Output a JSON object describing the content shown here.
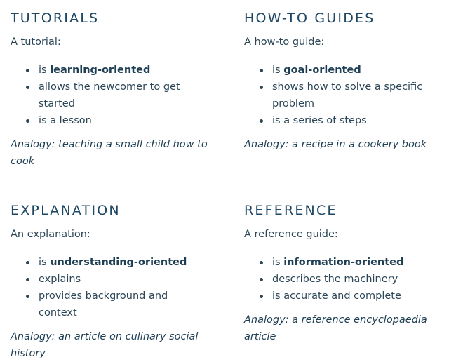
{
  "tutorials": {
    "heading": "TUTORIALS",
    "intro": "A tutorial:",
    "points": [
      {
        "prefix": "is ",
        "bold": "learning-oriented"
      },
      {
        "text": "allows the newcomer to get started"
      },
      {
        "text": "is a lesson"
      }
    ],
    "analogy": "Analogy: teaching a small child how to cook"
  },
  "howto": {
    "heading": "HOW-TO GUIDES",
    "intro": "A how-to guide:",
    "points": [
      {
        "prefix": "is ",
        "bold": "goal-oriented"
      },
      {
        "text": "shows how to solve a specific problem"
      },
      {
        "text": "is a series of steps"
      }
    ],
    "analogy": "Analogy: a recipe in a cookery book"
  },
  "explanation": {
    "heading": "EXPLANATION",
    "intro": "An explanation:",
    "points": [
      {
        "prefix": "is ",
        "bold": "understanding-oriented"
      },
      {
        "text": "explains"
      },
      {
        "text": "provides background and context"
      }
    ],
    "analogy": "Analogy: an article on culinary social history"
  },
  "reference": {
    "heading": "REFERENCE",
    "intro": "A reference guide:",
    "points": [
      {
        "prefix": "is ",
        "bold": "information-oriented"
      },
      {
        "text": "describes the machinery"
      },
      {
        "text": "is accurate and complete"
      }
    ],
    "analogy": "Analogy: a reference encyclopaedia article"
  }
}
